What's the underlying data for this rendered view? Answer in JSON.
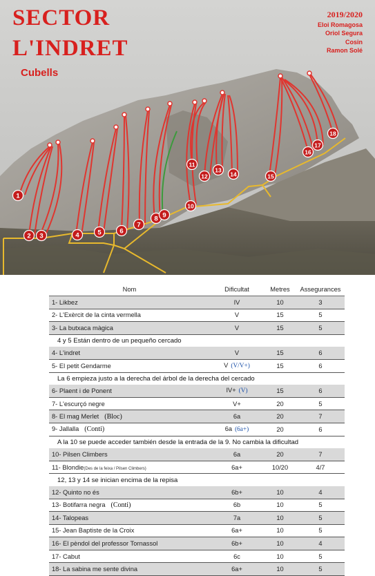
{
  "header": {
    "title_line1": "SECTOR",
    "title_line2": "L'INDRET",
    "subtitle": "Cubells",
    "year": "2019/2020",
    "authors": [
      "Eloi Romagosa",
      "Oriol Segura",
      "Cosin",
      "Ramon Solé"
    ]
  },
  "topo": {
    "route_markers": [
      "1",
      "2",
      "3",
      "4",
      "5",
      "6",
      "7",
      "8",
      "9",
      "10",
      "11",
      "12",
      "13",
      "14",
      "15",
      "16",
      "17",
      "18"
    ],
    "colors": {
      "route": "#e0352f",
      "path": "#e8b92d",
      "marker_fill": "#c41c1c",
      "marker_text": "#ffffff",
      "sky": "#c9c9c7",
      "rock": "#9e9c98"
    }
  },
  "table": {
    "headers": [
      "Nom",
      "Dificultat",
      "Metres",
      "Assegurances"
    ],
    "rows": [
      {
        "type": "route",
        "num": "1-",
        "name": "Likbez",
        "note": "",
        "grade": "IV",
        "grade_alt": "",
        "metres": "10",
        "bolts": "3"
      },
      {
        "type": "route",
        "num": "2-",
        "name": "L'Exèrcit de la cinta vermella",
        "note": "",
        "grade": "V",
        "grade_alt": "",
        "metres": "15",
        "bolts": "5"
      },
      {
        "type": "route",
        "num": "3-",
        "name": "La butxaca màgica",
        "note": "",
        "grade": "V",
        "grade_alt": "",
        "metres": "15",
        "bolts": "5"
      },
      {
        "type": "note",
        "text": "4 y 5 Están dentro de un pequeño cercado"
      },
      {
        "type": "route",
        "num": "4-",
        "name": "L'indret",
        "note": "",
        "grade": "V",
        "grade_alt": "",
        "metres": "15",
        "bolts": "6"
      },
      {
        "type": "route",
        "num": "5-",
        "name": "El petit Gendarme",
        "note": "",
        "grade": "V",
        "grade_alt": "(V/V+)",
        "metres": "15",
        "bolts": "6"
      },
      {
        "type": "note",
        "text": "La 6 empieza justo a la derecha del árbol de la derecha del cercado"
      },
      {
        "type": "route",
        "num": "6-",
        "name": "Plaent i de Ponent",
        "note": "",
        "grade": "IV+",
        "grade_alt": "(V)",
        "metres": "15",
        "bolts": "6"
      },
      {
        "type": "route",
        "num": "7-",
        "name": "L'escurçó negre",
        "note": "",
        "grade": "V+",
        "grade_alt": "",
        "metres": "20",
        "bolts": "5"
      },
      {
        "type": "route",
        "num": "8-",
        "name": "El mag Merlet",
        "note": "(Bloc)",
        "grade": "6a",
        "grade_alt": "",
        "metres": "20",
        "bolts": "7"
      },
      {
        "type": "route",
        "num": "9-",
        "name": "Jallalla",
        "note": "(Conti)",
        "grade": "6a",
        "grade_alt": "(6a+)",
        "metres": "20",
        "bolts": "6"
      },
      {
        "type": "note",
        "text": "A la 10 se puede acceder también desde la entrada de la 9. No cambia la dificultad"
      },
      {
        "type": "route",
        "num": "10-",
        "name": "Pilsen Climbers",
        "note": "",
        "grade": "6a",
        "grade_alt": "",
        "metres": "20",
        "bolts": "7"
      },
      {
        "type": "route",
        "num": "11-",
        "name": "Blondie",
        "note": "(Des de la feixa / Pilsen Climbers)",
        "grade": "6a+",
        "grade_alt": "",
        "metres": "10/20",
        "bolts": "4/7",
        "small": true
      },
      {
        "type": "note",
        "text": "12, 13 y 14  se inician encima de la repisa"
      },
      {
        "type": "route",
        "num": "12-",
        "name": "Quinto no és",
        "note": "",
        "grade": "6b+",
        "grade_alt": "",
        "metres": "10",
        "bolts": "4"
      },
      {
        "type": "route",
        "num": "13-",
        "name": "Botifarra negra",
        "note": "(Conti)",
        "grade": "6b",
        "grade_alt": "",
        "metres": "10",
        "bolts": "5"
      },
      {
        "type": "route",
        "num": "14-",
        "name": "Talopeas",
        "note": "",
        "grade": "7a",
        "grade_alt": "",
        "metres": "10",
        "bolts": "5"
      },
      {
        "type": "route",
        "num": "15-",
        "name": "Jean Baptiste de la Croix",
        "note": "",
        "grade": "6a+",
        "grade_alt": "",
        "metres": "10",
        "bolts": "5"
      },
      {
        "type": "route",
        "num": "16-",
        "name": "El pèndol del professor Tornassol",
        "note": "",
        "grade": "6b+",
        "grade_alt": "",
        "metres": "10",
        "bolts": "4"
      },
      {
        "type": "route",
        "num": "17-",
        "name": "Cabut",
        "note": "",
        "grade": "6c",
        "grade_alt": "",
        "metres": "10",
        "bolts": "5"
      },
      {
        "type": "route",
        "num": "18-",
        "name": "La sabina me sente divina",
        "note": "",
        "grade": "6a+",
        "grade_alt": "",
        "metres": "10",
        "bolts": "5"
      }
    ]
  }
}
